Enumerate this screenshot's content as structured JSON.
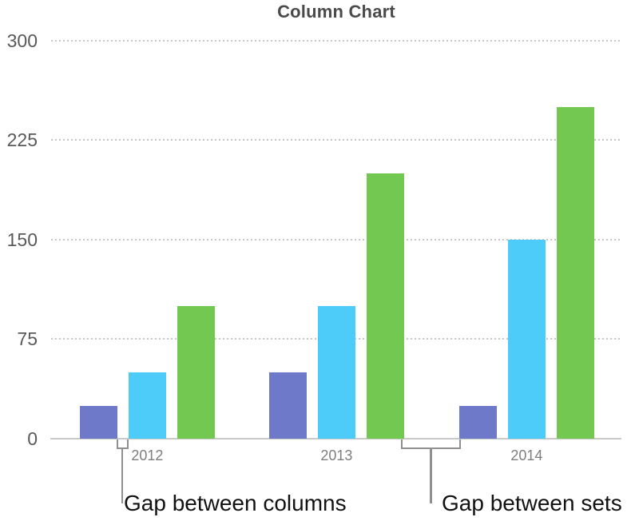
{
  "chart_data": {
    "type": "bar",
    "title": "Column Chart",
    "categories": [
      "2012",
      "2013",
      "2014"
    ],
    "series": [
      {
        "name": "purple-series",
        "color": "#6E79CA",
        "values": [
          25,
          50,
          25
        ]
      },
      {
        "name": "blue-series",
        "color": "#4DCCF9",
        "values": [
          50,
          100,
          150
        ]
      },
      {
        "name": "green-series",
        "color": "#72C850",
        "values": [
          100,
          200,
          250
        ]
      }
    ],
    "ylim": [
      0,
      300
    ],
    "yticks": [
      0,
      75,
      150,
      225,
      300
    ],
    "grid": "horizontal-dotted",
    "legend": "none"
  },
  "annotations": {
    "gap_between_columns": "Gap between columns",
    "gap_between_sets": "Gap between sets"
  },
  "colors": {
    "title": "#4A4A4C",
    "tick_label": "#59595B",
    "category_label": "#7E7E80",
    "gridline": "#C6C6C6",
    "axis_line": "#C9C9C9",
    "bracket": "#909090",
    "annotation_text": "#111111"
  }
}
